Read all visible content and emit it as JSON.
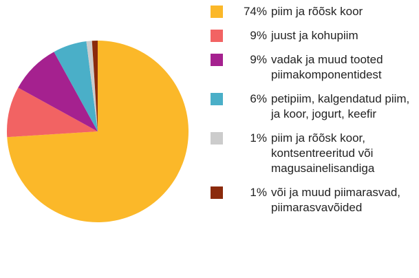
{
  "chart_data": {
    "type": "pie",
    "categories": [
      "piim ja rõõsk koor",
      "juust ja kohupiim",
      "vadak ja muud tooted piimakomponentidest",
      "petipiim, kalgendatud piim, ja koor, jogurt, keefir",
      "piim ja rõõsk koor, kontsentreeritud või magusainelisandiga",
      "või ja muud piima­rasvad, piimarasva­võided"
    ],
    "values": [
      74,
      9,
      9,
      6,
      1,
      1
    ],
    "value_labels": [
      "74%",
      "9%",
      "9%",
      "6%",
      "1%",
      "1%"
    ],
    "colors": [
      "#fbb829",
      "#f26363",
      "#a5218f",
      "#4aafc8",
      "#cccccc",
      "#8b2a0c"
    ],
    "legend": "right"
  }
}
